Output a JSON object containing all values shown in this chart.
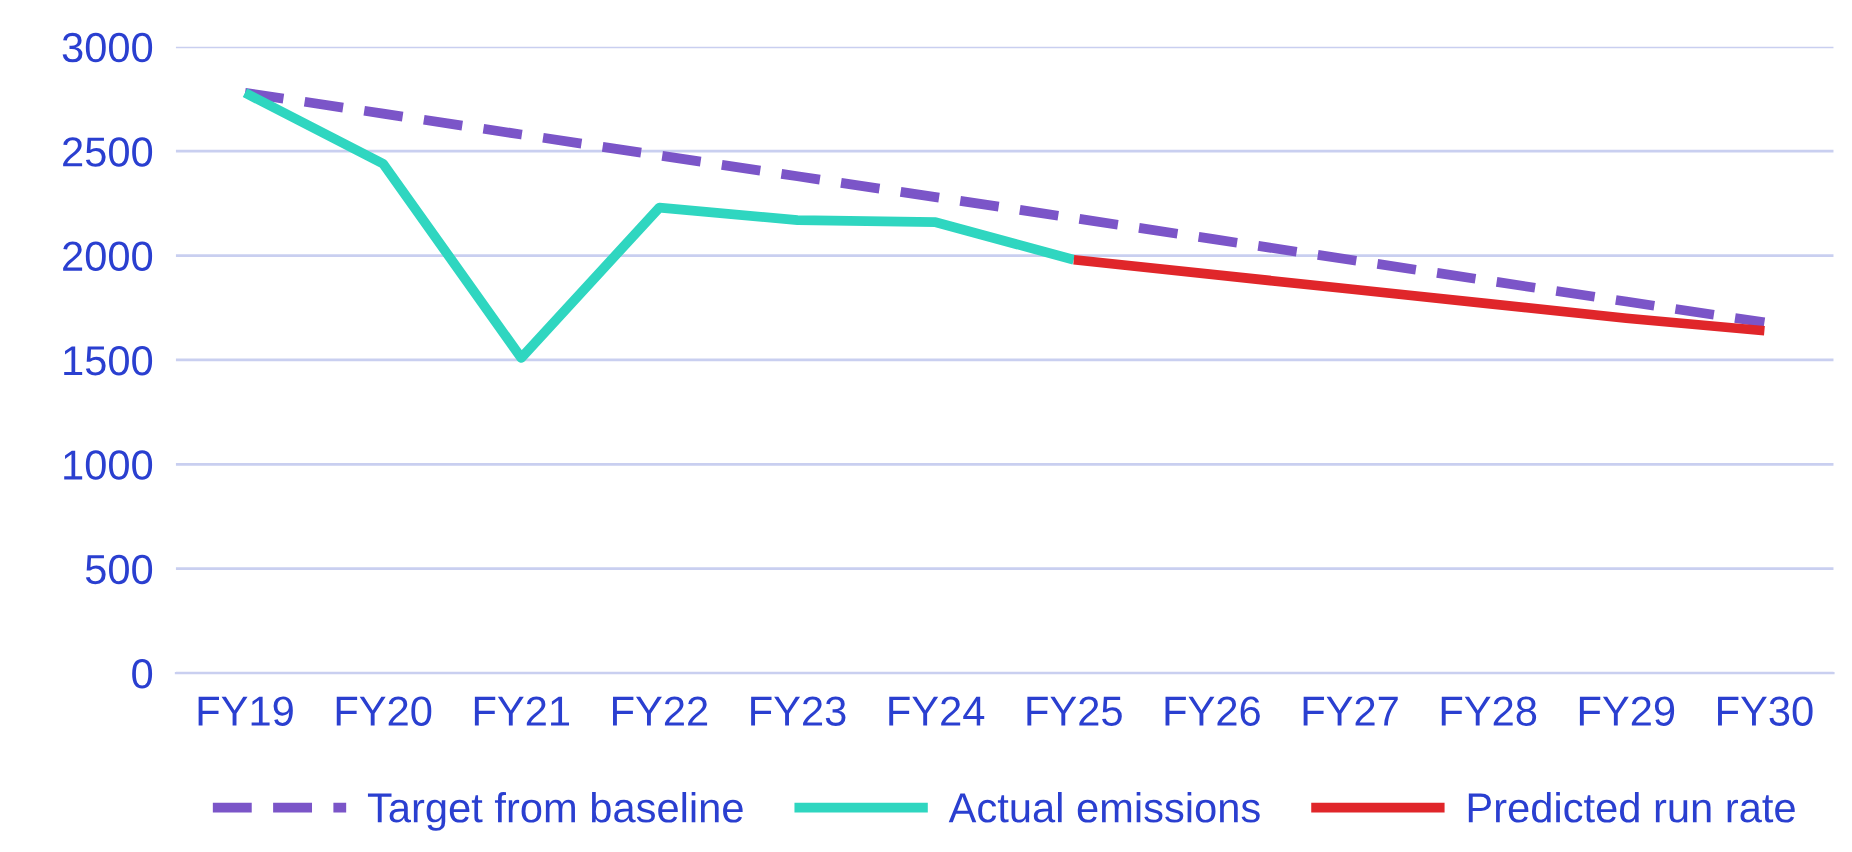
{
  "chart_data": {
    "type": "line",
    "categories": [
      "FY19",
      "FY20",
      "FY21",
      "FY22",
      "FY23",
      "FY24",
      "FY25",
      "FY26",
      "FY27",
      "FY28",
      "FY29",
      "FY30"
    ],
    "series": [
      {
        "name": "Target from baseline",
        "color": "#7b55c8",
        "line_style": "dashed",
        "values": [
          2780,
          2680,
          2580,
          2480,
          2380,
          2280,
          2180,
          2080,
          1980,
          1880,
          1780,
          1680
        ]
      },
      {
        "name": "Actual emissions",
        "color": "#2fd6c0",
        "line_style": "solid",
        "values": [
          2780,
          2440,
          1510,
          2230,
          2170,
          2160,
          1980,
          null,
          null,
          null,
          null,
          null
        ]
      },
      {
        "name": "Predicted run rate",
        "color": "#e0262a",
        "line_style": "solid",
        "values": [
          null,
          null,
          null,
          null,
          null,
          null,
          1980,
          1910,
          1840,
          1770,
          1700,
          1640
        ]
      }
    ],
    "ylim": [
      0,
      3000
    ],
    "yticks": [
      0,
      500,
      1000,
      1500,
      2000,
      2500,
      3000
    ],
    "grid": "y",
    "legend": "bottom",
    "marker": "none"
  }
}
